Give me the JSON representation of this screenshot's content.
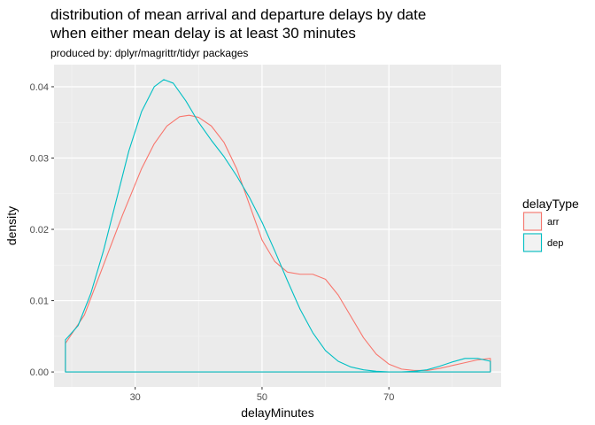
{
  "chart_data": {
    "type": "area",
    "title_lines": [
      "distribution of mean arrival and departure delays by date",
      "when either mean delay is at least 30 minutes"
    ],
    "subtitle": "produced by: dplyr/magrittr/tidyr packages",
    "xlabel": "delayMinutes",
    "ylabel": "density",
    "xlim": [
      17.2,
      87.7
    ],
    "ylim": [
      -0.0021,
      0.0431
    ],
    "x_ticks": [
      30,
      50,
      70
    ],
    "x_minor": [
      20,
      40,
      60,
      80
    ],
    "y_ticks": [
      0.0,
      0.01,
      0.02,
      0.03,
      0.04
    ],
    "y_tick_labels": [
      "0.00",
      "0.01",
      "0.02",
      "0.03",
      "0.04"
    ],
    "grid": true,
    "legend": {
      "title": "delayType",
      "placement": "right"
    },
    "series": [
      {
        "name": "arr",
        "color": "#F8766D",
        "x_range": [
          19.0,
          86.0
        ],
        "points": [
          [
            19.0,
            0.004
          ],
          [
            22.0,
            0.008
          ],
          [
            25.0,
            0.015
          ],
          [
            28.0,
            0.022
          ],
          [
            31.0,
            0.0285
          ],
          [
            33.0,
            0.032
          ],
          [
            35.0,
            0.0345
          ],
          [
            37.0,
            0.0358
          ],
          [
            38.5,
            0.036
          ],
          [
            40.0,
            0.0357
          ],
          [
            42.0,
            0.0345
          ],
          [
            44.0,
            0.0322
          ],
          [
            46.0,
            0.0285
          ],
          [
            48.0,
            0.0235
          ],
          [
            50.0,
            0.0185
          ],
          [
            52.0,
            0.0155
          ],
          [
            54.0,
            0.014
          ],
          [
            56.0,
            0.0137
          ],
          [
            58.0,
            0.0137
          ],
          [
            60.0,
            0.013
          ],
          [
            62.0,
            0.0108
          ],
          [
            64.0,
            0.0078
          ],
          [
            66.0,
            0.0048
          ],
          [
            68.0,
            0.0025
          ],
          [
            70.0,
            0.0011
          ],
          [
            72.0,
            0.0004
          ],
          [
            74.0,
            0.0002
          ],
          [
            76.0,
            0.0002
          ],
          [
            78.0,
            0.0005
          ],
          [
            80.0,
            0.0009
          ],
          [
            82.0,
            0.0013
          ],
          [
            84.0,
            0.0017
          ],
          [
            86.0,
            0.0019
          ]
        ]
      },
      {
        "name": "dep",
        "color": "#00BFC4",
        "x_range": [
          19.0,
          86.0
        ],
        "points": [
          [
            19.0,
            0.0045
          ],
          [
            21.0,
            0.0065
          ],
          [
            23.0,
            0.011
          ],
          [
            25.0,
            0.017
          ],
          [
            27.0,
            0.024
          ],
          [
            29.0,
            0.031
          ],
          [
            31.0,
            0.0365
          ],
          [
            33.0,
            0.04
          ],
          [
            34.5,
            0.041
          ],
          [
            36.0,
            0.0405
          ],
          [
            38.0,
            0.038
          ],
          [
            40.0,
            0.035
          ],
          [
            42.0,
            0.0325
          ],
          [
            44.0,
            0.0302
          ],
          [
            46.0,
            0.0275
          ],
          [
            48.0,
            0.0245
          ],
          [
            50.0,
            0.021
          ],
          [
            52.0,
            0.017
          ],
          [
            54.0,
            0.0128
          ],
          [
            56.0,
            0.0088
          ],
          [
            58.0,
            0.0055
          ],
          [
            60.0,
            0.003
          ],
          [
            62.0,
            0.0015
          ],
          [
            64.0,
            0.0007
          ],
          [
            66.0,
            0.0003
          ],
          [
            68.0,
            0.0001
          ],
          [
            70.0,
            0.0
          ],
          [
            72.0,
            0.0
          ],
          [
            74.0,
            0.0001
          ],
          [
            76.0,
            0.0003
          ],
          [
            78.0,
            0.0008
          ],
          [
            80.0,
            0.0014
          ],
          [
            82.0,
            0.0019
          ],
          [
            84.0,
            0.0019
          ],
          [
            86.0,
            0.0015
          ]
        ]
      }
    ]
  }
}
